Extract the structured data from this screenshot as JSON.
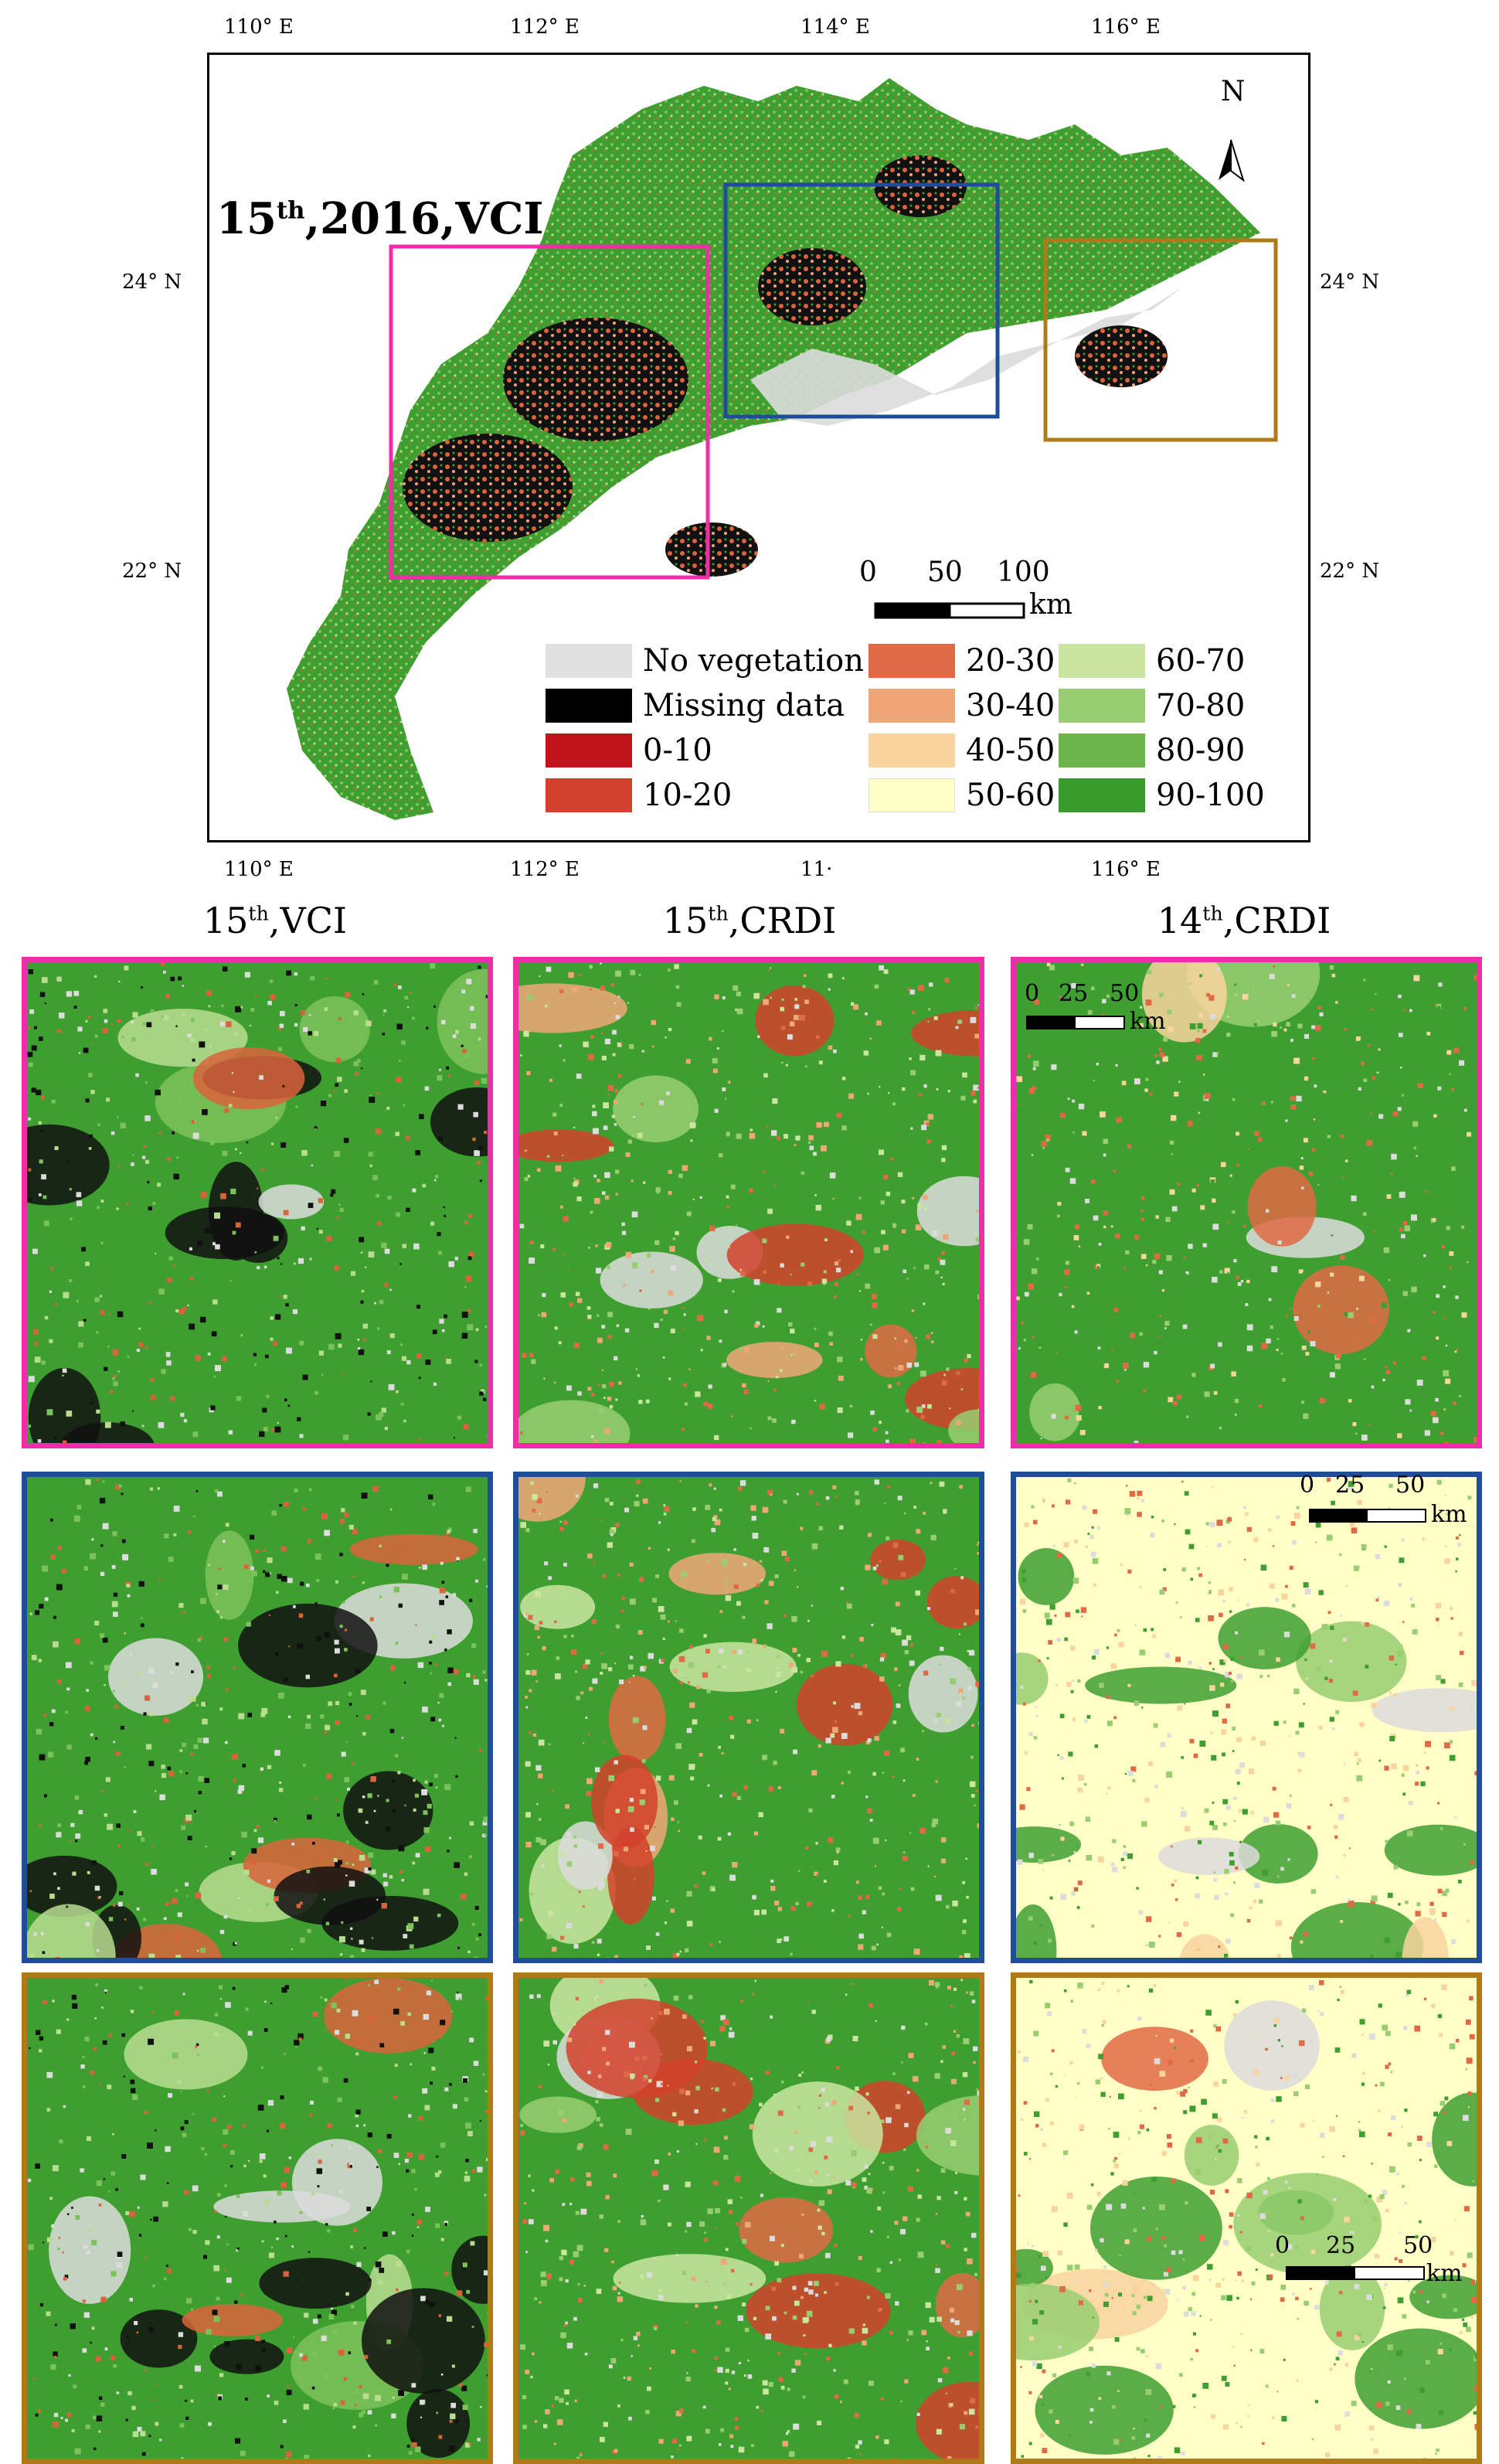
{
  "main_map": {
    "title": "15",
    "title_sup": "th",
    "title_rest": ",2016,VCI",
    "lon_top": [
      "110° E",
      "112° E",
      "114° E",
      "116° E"
    ],
    "lon_bottom": [
      "110° E",
      "112° E",
      "11·",
      "116° E"
    ],
    "lat_left": [
      "24° N",
      "22° N"
    ],
    "lat_right": [
      "24° N",
      "22° N"
    ],
    "north_label": "N",
    "scale": {
      "ticks": [
        "0",
        "50",
        "100"
      ],
      "unit": "km"
    }
  },
  "legend": [
    {
      "label": "No vegetation",
      "color": "#e1e1e1"
    },
    {
      "label": "Missing data",
      "color": "#000000"
    },
    {
      "label": "0-10",
      "color": "#c0141a"
    },
    {
      "label": "10-20",
      "color": "#d2412c"
    },
    {
      "label": "20-30",
      "color": "#e06a45"
    },
    {
      "label": "30-40",
      "color": "#f0a778"
    },
    {
      "label": "40-50",
      "color": "#f8d49f"
    },
    {
      "label": "50-60",
      "color": "#ffffc6"
    },
    {
      "label": "60-70",
      "color": "#c9e5a0"
    },
    {
      "label": "70-80",
      "color": "#98ce71"
    },
    {
      "label": "80-90",
      "color": "#6cb54c"
    },
    {
      "label": "90-100",
      "color": "#389c2c"
    }
  ],
  "zoom_boxes": [
    {
      "name": "pink",
      "color": "#f02ca8"
    },
    {
      "name": "blue",
      "color": "#1f4d9a"
    },
    {
      "name": "brown",
      "color": "#b07a1a"
    }
  ],
  "columns": [
    {
      "num": "15",
      "sup": "th",
      "rest": ",VCI"
    },
    {
      "num": "15",
      "sup": "th",
      "rest": ",CRDI"
    },
    {
      "num": "14",
      "sup": "th",
      "rest": ",CRDI"
    }
  ],
  "panel_scales": [
    {
      "ticks": [
        "0",
        "25",
        "50"
      ],
      "unit": "km"
    },
    {
      "ticks": [
        "0",
        "25",
        "50"
      ],
      "unit": "km"
    },
    {
      "ticks": [
        "0",
        "25",
        "50"
      ],
      "unit": "km"
    }
  ]
}
